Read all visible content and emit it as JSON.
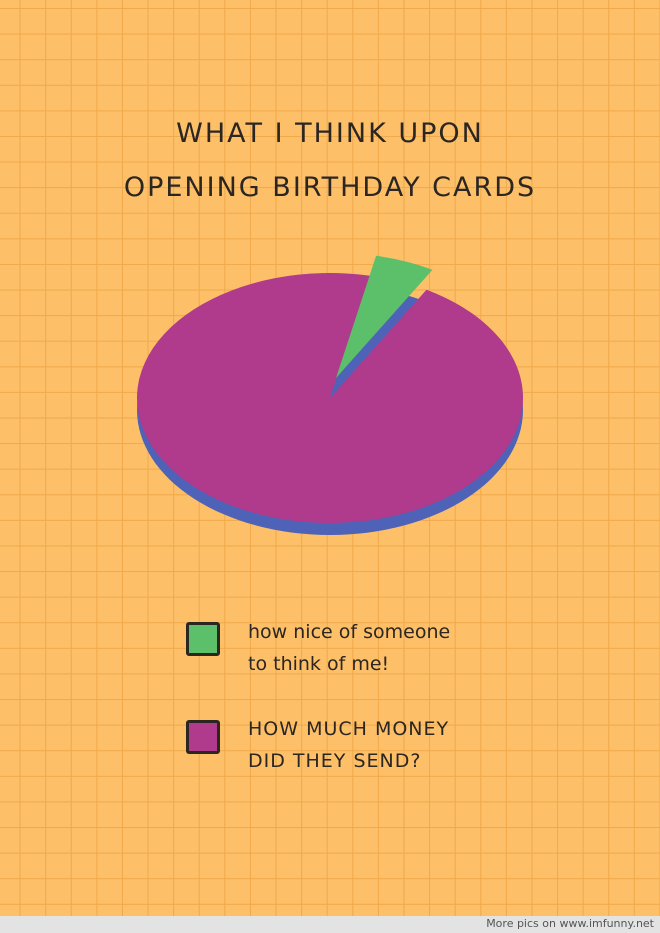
{
  "chart_data": {
    "type": "pie",
    "title": [
      "WHAT I THINK UPON",
      "OPENING BIRTHDAY CARDS"
    ],
    "slices": [
      {
        "label": "how nice of someone to think of me!",
        "lines": [
          "how nice of someone",
          "to think of me!"
        ],
        "value": 5,
        "color": "#5cbf6a",
        "exploded": true
      },
      {
        "label": "HOW MUCH MONEY DID THEY SEND?",
        "lines": [
          "HOW MUCH MONEY",
          "DID THEY SEND?"
        ],
        "value": 95,
        "color": "#b03a8c"
      }
    ],
    "style": "3d",
    "side_color": "#4e62b8",
    "legend_placement": "bottom"
  },
  "footer": {
    "text": "More pics on  www.imfunny.net"
  }
}
